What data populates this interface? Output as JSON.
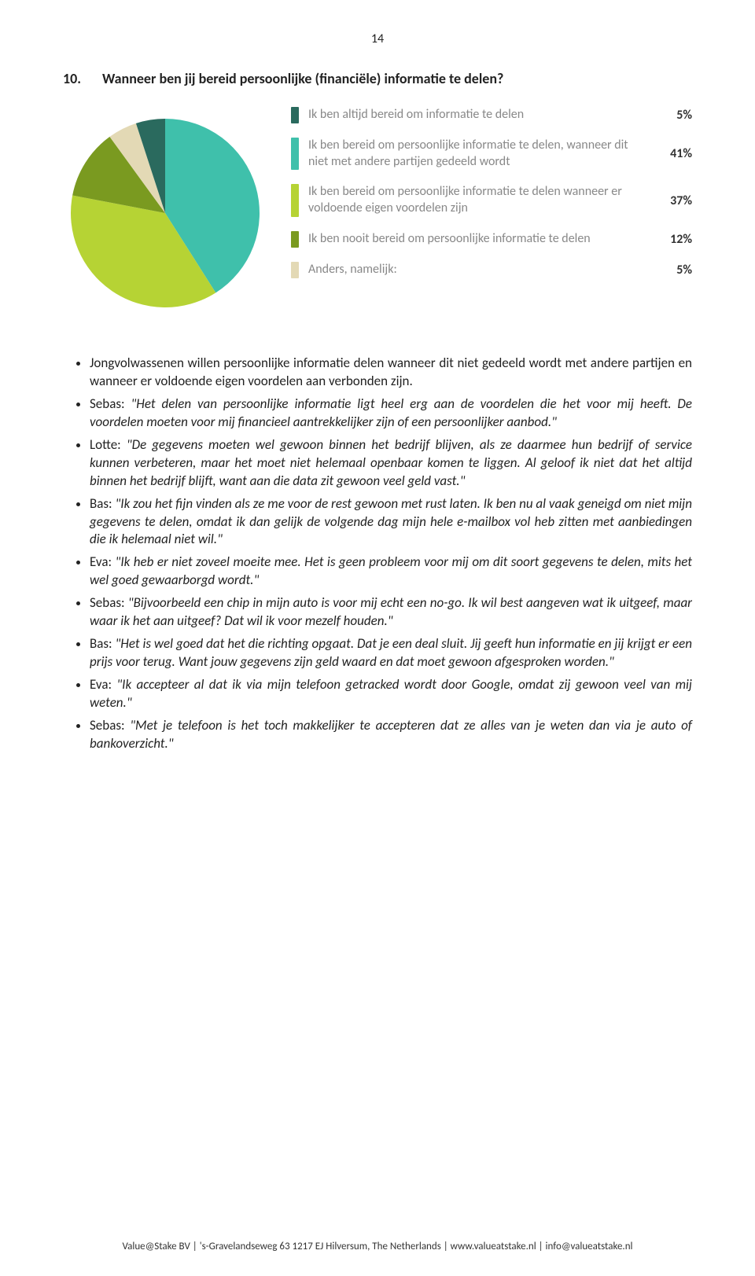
{
  "page_number": "14",
  "question": {
    "number": "10.",
    "text": "Wanneer ben jij bereid persoonlijke (financiële) informatie te delen?"
  },
  "chart": {
    "type": "pie",
    "background_color": "#ffffff",
    "series": [
      {
        "label": "Ik ben altijd bereid om informatie te delen",
        "value": 5,
        "pct": "5%",
        "color": "#2a6a5e"
      },
      {
        "label": "Ik ben bereid om persoonlijke informatie te delen, wanneer dit niet met andere partijen gedeeld wordt",
        "value": 41,
        "pct": "41%",
        "color": "#3fc0ab"
      },
      {
        "label": "Ik ben bereid om persoonlijke informatie te delen wanneer er voldoende eigen voordelen zijn",
        "value": 37,
        "pct": "37%",
        "color": "#b6d334"
      },
      {
        "label": "Ik ben nooit bereid om persoonlijke informatie te delen",
        "value": 12,
        "pct": "12%",
        "color": "#7a9a20"
      },
      {
        "label": "Anders, namelijk:",
        "value": 5,
        "pct": "5%",
        "color": "#e3d9b5"
      }
    ],
    "legend_label_color": "#888888",
    "legend_pct_color": "#333333",
    "legend_fontsize": 16
  },
  "bullets": [
    "Jongvolwassenen willen persoonlijke informatie delen wanneer dit niet gedeeld wordt met andere partijen en wanneer er voldoende eigen voordelen aan verbonden zijn.",
    "Sebas: \"Het delen van persoonlijke informatie ligt heel erg aan de voordelen die het voor mij heeft. De voordelen moeten voor mij financieel aantrekkelijker zijn of een persoonlijker aanbod.\"",
    "Lotte: \"De gegevens moeten wel gewoon binnen het bedrijf blijven, als ze daarmee hun bedrijf of service kunnen verbeteren, maar het moet niet helemaal openbaar komen te liggen. Al geloof ik niet dat het altijd binnen het bedrijf blijft, want aan die data zit gewoon veel geld vast.\"",
    "Bas: \"Ik zou het fijn vinden als ze me voor de rest gewoon met rust laten. Ik ben nu al vaak geneigd om niet mijn gegevens te delen, omdat ik dan gelijk de volgende dag mijn hele e-mailbox vol heb zitten met aanbiedingen die ik helemaal niet wil.\"",
    "Eva: \"Ik heb er niet zoveel moeite mee. Het is geen probleem voor mij om dit soort gegevens te delen, mits het wel goed gewaarborgd wordt.\"",
    "Sebas: \"Bijvoorbeeld een chip in mijn auto is voor mij echt een no-go. Ik wil best aangeven wat ik uitgeef, maar waar ik het aan uitgeef? Dat wil ik voor mezelf houden.\"",
    "Bas: \"Het is wel goed dat het die richting opgaat. Dat je een deal sluit. Jij geeft hun informatie en jij krijgt er een prijs voor terug. Want jouw gegevens zijn geld waard en dat moet gewoon afgesproken worden.\"",
    "Eva: \"Ik accepteer al dat ik via mijn telefoon getracked wordt door Google, omdat zij gewoon veel van mij weten.\"",
    "Sebas: \"Met je telefoon is het toch makkelijker te accepteren dat ze alles van je weten dan via je auto of bankoverzicht.\""
  ],
  "footer": "Value@Stake BV | 's-Gravelandseweg 63  1217 EJ Hilversum, The Netherlands | www.valueatstake.nl | info@valueatstake.nl"
}
